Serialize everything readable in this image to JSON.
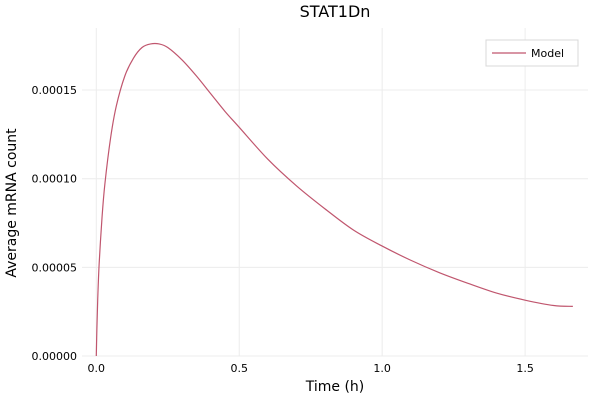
{
  "chart_data": {
    "type": "line",
    "title": "STAT1Dn",
    "xlabel": "Time (h)",
    "ylabel": "Average mRNA count",
    "xlim": [
      -0.05,
      1.72
    ],
    "ylim": [
      0.0,
      0.000185
    ],
    "x_ticks": [
      0.0,
      0.5,
      1.0,
      1.5
    ],
    "x_tick_labels": [
      "0.0",
      "0.5",
      "1.0",
      "1.5"
    ],
    "y_ticks": [
      0.0,
      5e-05,
      0.0001,
      0.00015
    ],
    "y_tick_labels": [
      "0.00000",
      "0.00005",
      "0.00010",
      "0.00015"
    ],
    "grid": true,
    "legend": "top-right",
    "series": [
      {
        "name": "Model",
        "color": "#c0566e",
        "x": [
          0.0,
          0.002,
          0.005,
          0.01,
          0.02,
          0.03,
          0.05,
          0.07,
          0.1,
          0.13,
          0.16,
          0.19,
          0.22,
          0.25,
          0.3,
          0.35,
          0.4,
          0.45,
          0.5,
          0.6,
          0.7,
          0.8,
          0.9,
          1.0,
          1.1,
          1.2,
          1.3,
          1.4,
          1.5,
          1.6,
          1.667
        ],
        "values": [
          0.0,
          1.5e-05,
          3.2e-05,
          5.2e-05,
          7.8e-05,
          9.7e-05,
          0.000123,
          0.000141,
          0.000158,
          0.000168,
          0.000174,
          0.000176,
          0.000176,
          0.000174,
          0.000167,
          0.000158,
          0.000148,
          0.000138,
          0.000129,
          0.000111,
          9.6e-05,
          8.3e-05,
          7.1e-05,
          6.2e-05,
          5.4e-05,
          4.7e-05,
          4.1e-05,
          3.55e-05,
          3.15e-05,
          2.85e-05,
          2.8e-05
        ]
      }
    ]
  }
}
